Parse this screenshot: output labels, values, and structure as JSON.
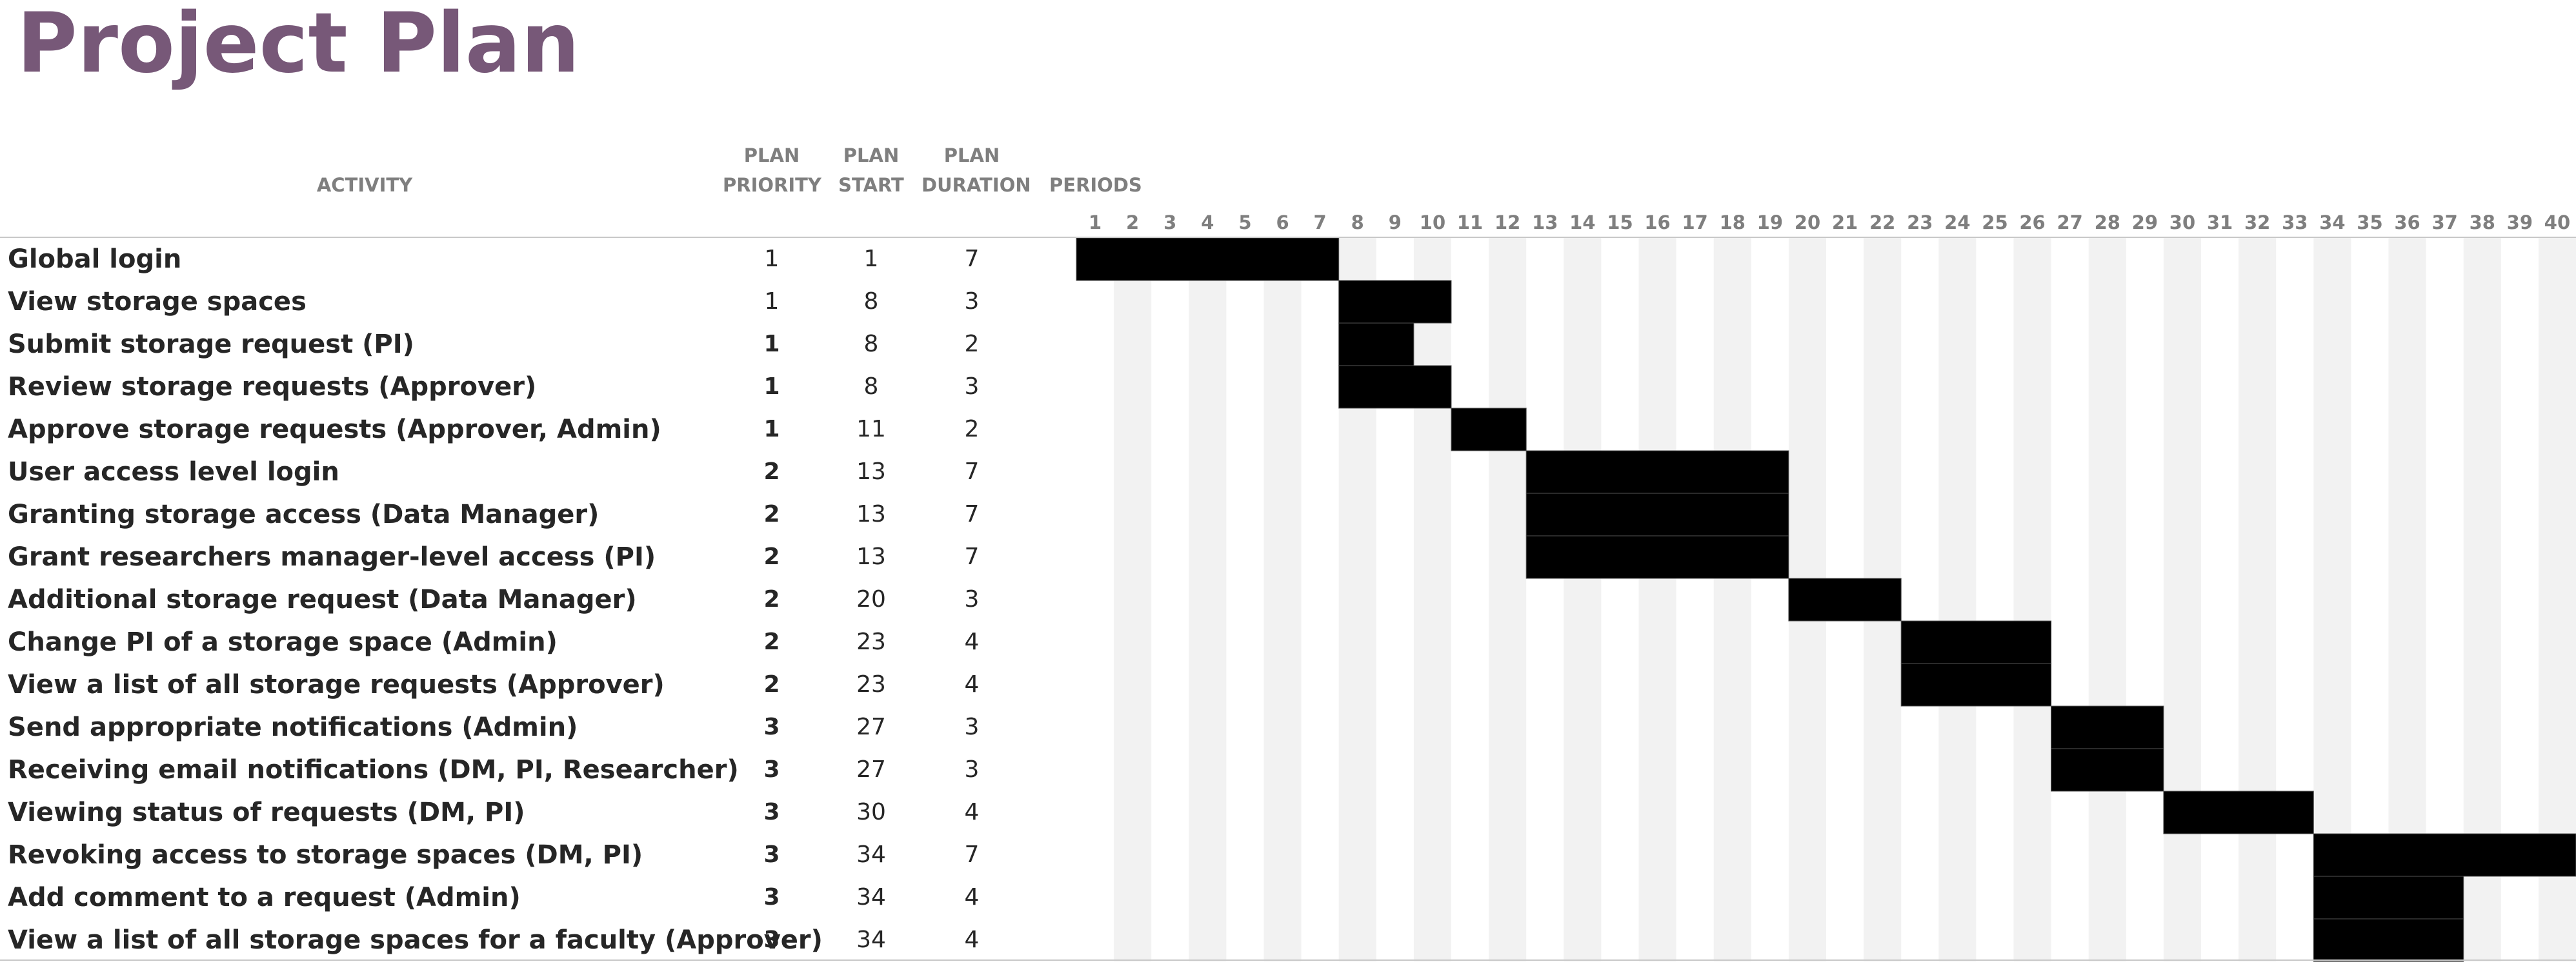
{
  "title": "Project Plan",
  "headers": {
    "activity": "ACTIVITY",
    "priority": [
      "PLAN",
      "PRIORITY"
    ],
    "start": [
      "PLAN",
      "START"
    ],
    "duration": [
      "PLAN",
      "DURATION"
    ],
    "periods": "PERIODS"
  },
  "colors": {
    "title": "#775878",
    "bar": "#000000",
    "stripe": "#f2f2f2",
    "header_text": "#7f7f7f"
  },
  "chart_data": {
    "type": "gantt",
    "periods": [
      1,
      2,
      3,
      4,
      5,
      6,
      7,
      8,
      9,
      10,
      11,
      12,
      13,
      14,
      15,
      16,
      17,
      18,
      19,
      20,
      21,
      22,
      23,
      24,
      25,
      26,
      27,
      28,
      29,
      30,
      31,
      32,
      33,
      34,
      35,
      36,
      37,
      38,
      39,
      40
    ],
    "tasks": [
      {
        "activity": "Global login",
        "priority": 1,
        "start": 1,
        "duration": 7
      },
      {
        "activity": "View storage spaces",
        "priority": 1,
        "start": 8,
        "duration": 3
      },
      {
        "activity": "Submit storage request (PI)",
        "priority": 1,
        "start": 8,
        "duration": 2
      },
      {
        "activity": "Review storage requests (Approver)",
        "priority": 1,
        "start": 8,
        "duration": 3
      },
      {
        "activity": "Approve storage requests (Approver, Admin)",
        "priority": 1,
        "start": 11,
        "duration": 2
      },
      {
        "activity": "User access level login",
        "priority": 2,
        "start": 13,
        "duration": 7
      },
      {
        "activity": "Granting storage access (Data Manager)",
        "priority": 2,
        "start": 13,
        "duration": 7
      },
      {
        "activity": "Grant researchers manager-level access (PI)",
        "priority": 2,
        "start": 13,
        "duration": 7
      },
      {
        "activity": "Additional storage request (Data Manager)",
        "priority": 2,
        "start": 20,
        "duration": 3
      },
      {
        "activity": "Change PI of a storage space (Admin)",
        "priority": 2,
        "start": 23,
        "duration": 4
      },
      {
        "activity": "View a list of all storage requests (Approver)",
        "priority": 2,
        "start": 23,
        "duration": 4
      },
      {
        "activity": "Send appropriate notifications (Admin)",
        "priority": 3,
        "start": 27,
        "duration": 3
      },
      {
        "activity": "Receiving email notifications (DM, PI, Researcher)",
        "priority": 3,
        "start": 27,
        "duration": 3
      },
      {
        "activity": "Viewing status of requests (DM, PI)",
        "priority": 3,
        "start": 30,
        "duration": 4
      },
      {
        "activity": "Revoking access to storage spaces (DM, PI)",
        "priority": 3,
        "start": 34,
        "duration": 7
      },
      {
        "activity": "Add comment to a request (Admin)",
        "priority": 3,
        "start": 34,
        "duration": 4
      },
      {
        "activity": "View a list of all storage spaces for a faculty (Approver)",
        "priority": 3,
        "start": 34,
        "duration": 4
      }
    ]
  }
}
